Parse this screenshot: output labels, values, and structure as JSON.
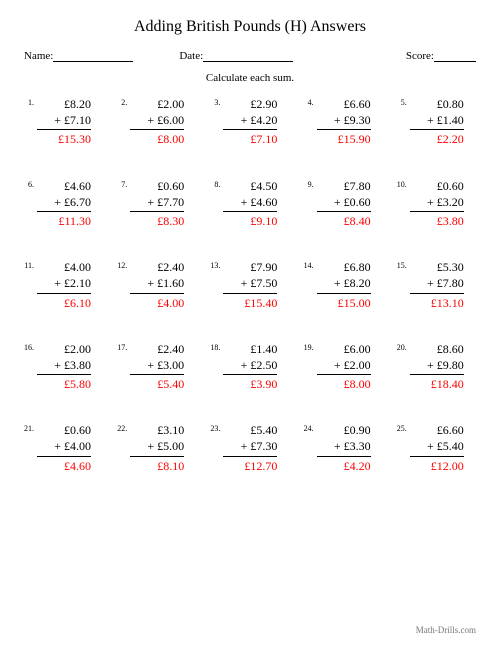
{
  "title": "Adding British Pounds (H) Answers",
  "header": {
    "name_label": "Name:",
    "date_label": "Date:",
    "score_label": "Score:"
  },
  "instruction": "Calculate each sum.",
  "colors": {
    "answer": "#ff0000",
    "text": "#000000",
    "background": "#ffffff"
  },
  "problems": [
    {
      "n": "1.",
      "a": "£8.20",
      "b": "+ £7.10",
      "ans": "£15.30"
    },
    {
      "n": "2.",
      "a": "£2.00",
      "b": "+ £6.00",
      "ans": "£8.00"
    },
    {
      "n": "3.",
      "a": "£2.90",
      "b": "+ £4.20",
      "ans": "£7.10"
    },
    {
      "n": "4.",
      "a": "£6.60",
      "b": "+ £9.30",
      "ans": "£15.90"
    },
    {
      "n": "5.",
      "a": "£0.80",
      "b": "+ £1.40",
      "ans": "£2.20"
    },
    {
      "n": "6.",
      "a": "£4.60",
      "b": "+ £6.70",
      "ans": "£11.30"
    },
    {
      "n": "7.",
      "a": "£0.60",
      "b": "+ £7.70",
      "ans": "£8.30"
    },
    {
      "n": "8.",
      "a": "£4.50",
      "b": "+ £4.60",
      "ans": "£9.10"
    },
    {
      "n": "9.",
      "a": "£7.80",
      "b": "+ £0.60",
      "ans": "£8.40"
    },
    {
      "n": "10.",
      "a": "£0.60",
      "b": "+ £3.20",
      "ans": "£3.80"
    },
    {
      "n": "11.",
      "a": "£4.00",
      "b": "+ £2.10",
      "ans": "£6.10"
    },
    {
      "n": "12.",
      "a": "£2.40",
      "b": "+ £1.60",
      "ans": "£4.00"
    },
    {
      "n": "13.",
      "a": "£7.90",
      "b": "+ £7.50",
      "ans": "£15.40"
    },
    {
      "n": "14.",
      "a": "£6.80",
      "b": "+ £8.20",
      "ans": "£15.00"
    },
    {
      "n": "15.",
      "a": "£5.30",
      "b": "+ £7.80",
      "ans": "£13.10"
    },
    {
      "n": "16.",
      "a": "£2.00",
      "b": "+ £3.80",
      "ans": "£5.80"
    },
    {
      "n": "17.",
      "a": "£2.40",
      "b": "+ £3.00",
      "ans": "£5.40"
    },
    {
      "n": "18.",
      "a": "£1.40",
      "b": "+ £2.50",
      "ans": "£3.90"
    },
    {
      "n": "19.",
      "a": "£6.00",
      "b": "+ £2.00",
      "ans": "£8.00"
    },
    {
      "n": "20.",
      "a": "£8.60",
      "b": "+ £9.80",
      "ans": "£18.40"
    },
    {
      "n": "21.",
      "a": "£0.60",
      "b": "+ £4.00",
      "ans": "£4.60"
    },
    {
      "n": "22.",
      "a": "£3.10",
      "b": "+ £5.00",
      "ans": "£8.10"
    },
    {
      "n": "23.",
      "a": "£5.40",
      "b": "+ £7.30",
      "ans": "£12.70"
    },
    {
      "n": "24.",
      "a": "£0.90",
      "b": "+ £3.30",
      "ans": "£4.20"
    },
    {
      "n": "25.",
      "a": "£6.60",
      "b": "+ £5.40",
      "ans": "£12.00"
    }
  ],
  "footer": "Math-Drills.com"
}
